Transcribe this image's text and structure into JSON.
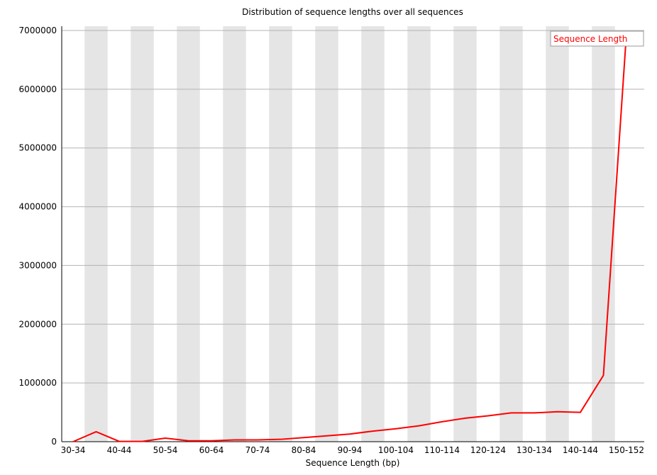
{
  "chart_data": {
    "type": "line",
    "title": "Distribution of sequence lengths over all sequences",
    "x_label": "Sequence Length (bp)",
    "categories": [
      "30-34",
      null,
      "40-44",
      null,
      "50-54",
      null,
      "60-64",
      null,
      "70-74",
      null,
      "80-84",
      null,
      "90-94",
      null,
      "100-104",
      null,
      "110-114",
      null,
      "120-124",
      null,
      "130-134",
      null,
      "140-144",
      null,
      "150-152"
    ],
    "series": [
      {
        "name": "Sequence Length",
        "color": "#ff0000",
        "values": [
          0,
          170000,
          5000,
          5000,
          60000,
          15000,
          15000,
          30000,
          30000,
          40000,
          70000,
          100000,
          130000,
          180000,
          220000,
          270000,
          340000,
          400000,
          440000,
          490000,
          490000,
          510000,
          500000,
          1130000,
          6960000
        ]
      }
    ],
    "ylim": [
      0,
      7000000
    ],
    "yticks": [
      0,
      1000000,
      2000000,
      3000000,
      4000000,
      5000000,
      6000000,
      7000000
    ],
    "grid": true,
    "legend": "top-right"
  }
}
